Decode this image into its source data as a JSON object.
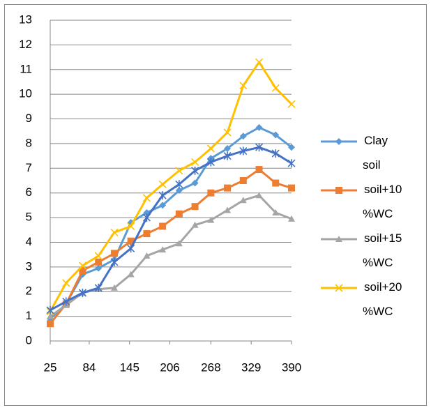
{
  "chart_data": {
    "type": "line",
    "x": [
      25,
      49,
      74,
      98,
      122,
      147,
      171,
      195,
      220,
      244,
      268,
      293,
      317,
      341,
      366,
      390
    ],
    "xlim": [
      25,
      390
    ],
    "xticks": [
      25,
      84,
      145,
      206,
      268,
      329,
      390
    ],
    "ylim": [
      0,
      13
    ],
    "yticks": [
      0,
      1,
      2,
      3,
      4,
      5,
      6,
      7,
      8,
      9,
      10,
      11,
      12,
      13
    ],
    "grid": true,
    "legend": "right",
    "series": [
      {
        "name": "Clay soil",
        "color": "#5b9bd5",
        "marker": "diamond",
        "values": [
          0.9,
          1.5,
          2.7,
          2.95,
          3.3,
          4.8,
          5.2,
          5.5,
          6.1,
          6.4,
          7.4,
          7.8,
          8.3,
          8.65,
          8.35,
          7.85
        ]
      },
      {
        "name": "soil+10 %WC",
        "color": "#ed7d31",
        "marker": "square",
        "values": [
          0.7,
          1.5,
          2.85,
          3.2,
          3.55,
          4.05,
          4.35,
          4.65,
          5.15,
          5.45,
          6.0,
          6.2,
          6.5,
          6.95,
          6.4,
          6.2
        ]
      },
      {
        "name": "soil+15 %WC",
        "color": "#a5a5a5",
        "marker": "triangle",
        "values": [
          1.0,
          1.45,
          1.95,
          2.1,
          2.15,
          2.7,
          3.45,
          3.7,
          3.95,
          4.7,
          4.9,
          5.3,
          5.7,
          5.9,
          5.2,
          4.95
        ]
      },
      {
        "name": "soil+20 %WC",
        "color": "#ffc000",
        "marker": "x",
        "values": [
          1.2,
          2.35,
          3.05,
          3.45,
          4.4,
          4.65,
          5.8,
          6.35,
          6.9,
          7.25,
          7.8,
          8.45,
          10.35,
          11.3,
          10.25,
          9.6
        ]
      },
      {
        "color": "#4472c4",
        "marker": "star",
        "values": [
          1.25,
          1.6,
          1.95,
          2.15,
          3.2,
          3.75,
          5.0,
          5.9,
          6.35,
          6.9,
          7.25,
          7.5,
          7.7,
          7.85,
          7.6,
          7.2
        ]
      }
    ]
  }
}
